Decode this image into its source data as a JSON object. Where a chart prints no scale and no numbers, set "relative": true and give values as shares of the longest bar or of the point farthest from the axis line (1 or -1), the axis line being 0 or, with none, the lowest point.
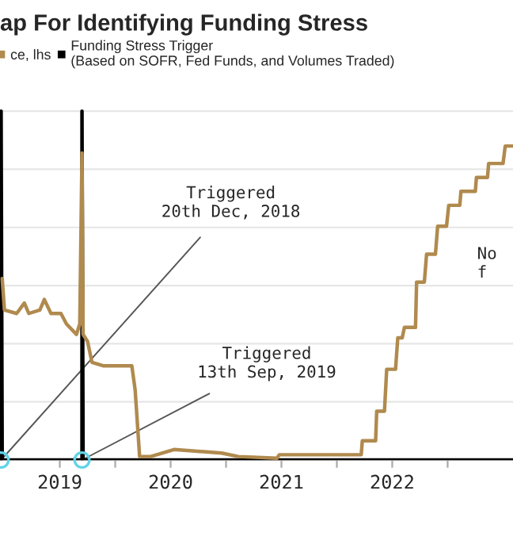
{
  "chart_data": {
    "type": "line",
    "title": "ap For Identifying Funding Stress",
    "relative": true,
    "series": [
      {
        "name": "ce, lhs",
        "color": "#b08a4e",
        "x": [
          2018.98,
          2019.0,
          2019.11,
          2019.18,
          2019.22,
          2019.32,
          2019.36,
          2019.42,
          2019.51,
          2019.56,
          2019.65,
          2019.68,
          2019.7,
          2019.71,
          2019.75,
          2019.79,
          2019.89,
          2020.15,
          2020.18,
          2020.22,
          2020.32,
          2020.53,
          2020.96,
          2021.11,
          2021.46,
          2021.48,
          2022.22,
          2022.23,
          2022.35,
          2022.36,
          2022.43,
          2022.45,
          2022.53,
          2022.55,
          2022.59,
          2022.61,
          2022.71,
          2022.72,
          2022.79,
          2022.81,
          2022.89,
          2022.91,
          2022.99,
          2023.01,
          2023.11,
          2023.12,
          2023.25,
          2023.26,
          2023.36,
          2023.37,
          2023.5,
          2023.52,
          2023.59
        ],
        "values": [
          0.52,
          0.43,
          0.42,
          0.45,
          0.42,
          0.43,
          0.46,
          0.42,
          0.42,
          0.39,
          0.36,
          0.39,
          0.88,
          0.36,
          0.34,
          0.28,
          0.27,
          0.27,
          0.2,
          0.01,
          0.01,
          0.03,
          0.02,
          0.01,
          0.005,
          0.015,
          0.015,
          0.055,
          0.055,
          0.14,
          0.14,
          0.26,
          0.26,
          0.35,
          0.35,
          0.38,
          0.38,
          0.51,
          0.51,
          0.59,
          0.59,
          0.67,
          0.67,
          0.73,
          0.73,
          0.77,
          0.77,
          0.81,
          0.81,
          0.85,
          0.85,
          0.9,
          0.9
        ]
      },
      {
        "name": "Funding Stress Trigger\n(Based on SOFR, Fed Funds, and Volumes Traded)",
        "color": "#000000",
        "x": [
          2018.96,
          2018.97,
          2018.97,
          2018.98,
          2019.69,
          2019.7,
          2019.7,
          2019.71,
          2023.59
        ],
        "values": [
          0,
          0,
          1,
          0,
          0,
          0,
          1,
          0,
          0
        ]
      },
      {
        "type": "scatter",
        "color": "#5fd3e8",
        "x": [
          2018.97,
          2019.7
        ],
        "values": [
          0,
          0
        ]
      }
    ],
    "xlim": [
      2018.96,
      2023.59
    ],
    "xticks": [
      {
        "value": 2019.5,
        "label": "2019"
      },
      {
        "value": 2020,
        "label": null
      },
      {
        "value": 2020.5,
        "label": "2020"
      },
      {
        "value": 2021,
        "label": null
      },
      {
        "value": 2021.5,
        "label": "2021"
      },
      {
        "value": 2022,
        "label": null
      },
      {
        "value": 2022.5,
        "label": "2022"
      },
      {
        "value": 2023,
        "label": null
      }
    ],
    "grid": "y",
    "legend": "top left",
    "annotations": [
      {
        "text": "Triggered\n20th Dec, 2018",
        "x": 2018.97,
        "y": 0
      },
      {
        "text": "Triggered\n13th Sep, 2019",
        "x": 2019.7,
        "y": 0
      },
      "No\nf"
    ]
  }
}
